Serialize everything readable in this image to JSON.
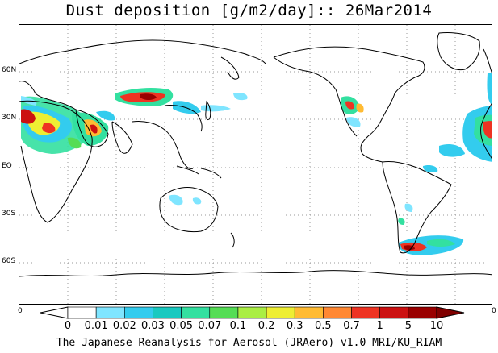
{
  "title": "Dust deposition [g/m2/day]:: 26Mar2014",
  "lat_labels": [
    "60N",
    "30N",
    "EQ",
    "30S",
    "60S"
  ],
  "colorbar": {
    "left_end": "0",
    "right_end": "0",
    "levels": [
      "0",
      "0.01",
      "0.02",
      "0.03",
      "0.05",
      "0.07",
      "0.1",
      "0.2",
      "0.3",
      "0.5",
      "0.7",
      "1",
      "5",
      "10"
    ],
    "colors": [
      "#ffffff",
      "#ffffff",
      "#7fe5ff",
      "#33ccee",
      "#19c9c0",
      "#33e0a0",
      "#55dd55",
      "#aaee44",
      "#eeee33",
      "#ffbb33",
      "#ff8833",
      "#ee3322",
      "#cc1111",
      "#990000",
      "#800000"
    ]
  },
  "footer": "The Japanese Reanalysis for Aerosol (JRAero) v1.0 MRI/KU_RIAM"
}
